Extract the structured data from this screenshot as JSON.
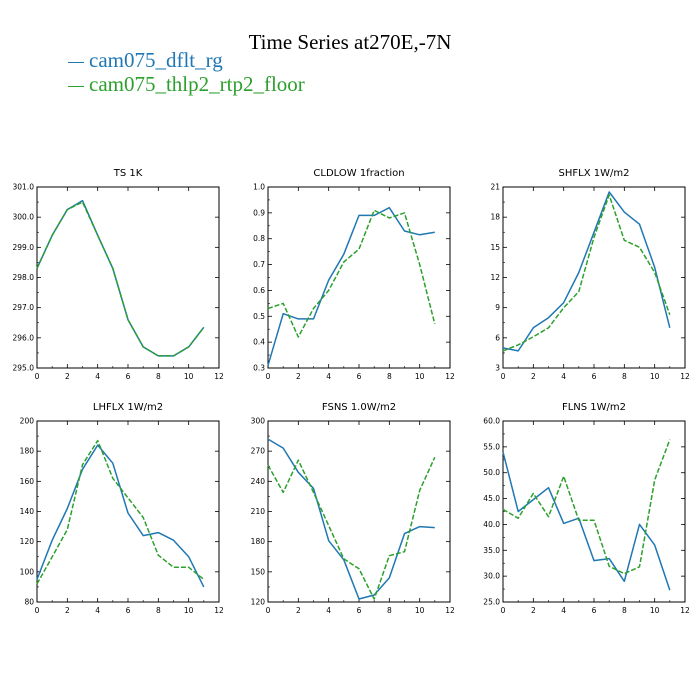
{
  "title": "Time Series at270E,-7N",
  "legend": [
    {
      "name": "cam075_dflt_rg",
      "color": "#1f77b4",
      "dash": "solid"
    },
    {
      "name": "cam075_thlp2_rtp2_floor",
      "color": "#2ca02c",
      "dash": "dashed"
    }
  ],
  "chart_data": [
    {
      "type": "line",
      "title": "TS   1K",
      "x": [
        0,
        1,
        2,
        3,
        4,
        5,
        6,
        7,
        8,
        9,
        10,
        11
      ],
      "xlim": [
        0,
        12
      ],
      "xticks": [
        0,
        2,
        4,
        6,
        8,
        10,
        12
      ],
      "ylim": [
        295,
        301
      ],
      "yticks": [
        "295.0",
        "296.0",
        "297.0",
        "298.0",
        "299.0",
        "300.0",
        "301.0"
      ],
      "series": [
        {
          "values": [
            298.3,
            299.4,
            300.25,
            300.55,
            299.4,
            298.3,
            296.6,
            295.7,
            295.4,
            295.4,
            295.7,
            296.35
          ]
        },
        {
          "values": [
            298.3,
            299.4,
            300.25,
            300.5,
            299.4,
            298.3,
            296.6,
            295.7,
            295.4,
            295.4,
            295.7,
            296.35
          ]
        }
      ]
    },
    {
      "type": "line",
      "title": "CLDLOW   1fraction",
      "x": [
        0,
        1,
        2,
        3,
        4,
        5,
        6,
        7,
        8,
        9,
        10,
        11
      ],
      "xlim": [
        0,
        12
      ],
      "xticks": [
        0,
        2,
        4,
        6,
        8,
        10,
        12
      ],
      "ylim": [
        0.3,
        1.0
      ],
      "yticks": [
        "0.3",
        "0.4",
        "0.5",
        "0.6",
        "0.7",
        "0.8",
        "0.9",
        "1.0"
      ],
      "series": [
        {
          "values": [
            0.31,
            0.51,
            0.49,
            0.49,
            0.64,
            0.74,
            0.89,
            0.89,
            0.92,
            0.83,
            0.815,
            0.825
          ]
        },
        {
          "values": [
            0.53,
            0.55,
            0.42,
            0.53,
            0.6,
            0.71,
            0.76,
            0.91,
            0.88,
            0.9,
            0.7,
            0.47
          ]
        }
      ]
    },
    {
      "type": "line",
      "title": "SHFLX   1W/m2",
      "x": [
        0,
        1,
        2,
        3,
        4,
        5,
        6,
        7,
        8,
        9,
        10,
        11
      ],
      "xlim": [
        0,
        12
      ],
      "xticks": [
        0,
        2,
        4,
        6,
        8,
        10,
        12
      ],
      "ylim": [
        3,
        21
      ],
      "yticks": [
        "3",
        "6",
        "9",
        "12",
        "15",
        "18",
        "21"
      ],
      "series": [
        {
          "values": [
            5.0,
            4.7,
            7.0,
            8.0,
            9.5,
            12.5,
            16.5,
            20.5,
            18.5,
            17.3,
            13.0,
            7.0
          ]
        },
        {
          "values": [
            4.7,
            5.3,
            6.1,
            7.0,
            9.0,
            10.6,
            16.0,
            20.2,
            15.7,
            15.0,
            12.5,
            8.3
          ]
        }
      ]
    },
    {
      "type": "line",
      "title": "LHFLX   1W/m2",
      "x": [
        0,
        1,
        2,
        3,
        4,
        5,
        6,
        7,
        8,
        9,
        10,
        11
      ],
      "xlim": [
        0,
        12
      ],
      "xticks": [
        0,
        2,
        4,
        6,
        8,
        10,
        12
      ],
      "ylim": [
        80,
        200
      ],
      "yticks": [
        "80",
        "100",
        "120",
        "140",
        "160",
        "180",
        "200"
      ],
      "series": [
        {
          "values": [
            95,
            121,
            142,
            168,
            184,
            172,
            139,
            124,
            126,
            121,
            110,
            90
          ]
        },
        {
          "values": [
            92,
            110,
            128,
            171,
            187,
            162,
            149,
            136,
            111,
            103,
            103,
            95
          ]
        }
      ]
    },
    {
      "type": "line",
      "title": "FSNS   1.0W/m2",
      "x": [
        0,
        1,
        2,
        3,
        4,
        5,
        6,
        7,
        8,
        9,
        10,
        11
      ],
      "xlim": [
        0,
        12
      ],
      "xticks": [
        0,
        2,
        4,
        6,
        8,
        10,
        12
      ],
      "ylim": [
        120,
        300
      ],
      "yticks": [
        "120",
        "150",
        "180",
        "210",
        "240",
        "270",
        "300"
      ],
      "series": [
        {
          "values": [
            282,
            273,
            249,
            233,
            181,
            162,
            123,
            127,
            144,
            188,
            195,
            194
          ]
        },
        {
          "values": [
            256,
            229,
            261,
            229,
            196,
            163,
            153,
            123,
            166,
            170,
            231,
            264
          ]
        }
      ]
    },
    {
      "type": "line",
      "title": "FLNS   1W/m2",
      "x": [
        0,
        1,
        2,
        3,
        4,
        5,
        6,
        7,
        8,
        9,
        10,
        11
      ],
      "xlim": [
        0,
        12
      ],
      "xticks": [
        0,
        2,
        4,
        6,
        8,
        10,
        12
      ],
      "ylim": [
        25,
        60
      ],
      "yticks": [
        "25.0",
        "30.0",
        "35.0",
        "40.0",
        "45.0",
        "50.0",
        "55.0",
        "60.0"
      ],
      "series": [
        {
          "values": [
            54.0,
            42.5,
            44.8,
            47.1,
            40.2,
            41.2,
            33.0,
            33.4,
            29.0,
            40.0,
            36.0,
            27.3
          ]
        },
        {
          "values": [
            42.9,
            41.2,
            46.0,
            41.5,
            49.3,
            40.8,
            40.8,
            31.9,
            30.5,
            31.8,
            48.6,
            56.4
          ]
        }
      ]
    }
  ]
}
